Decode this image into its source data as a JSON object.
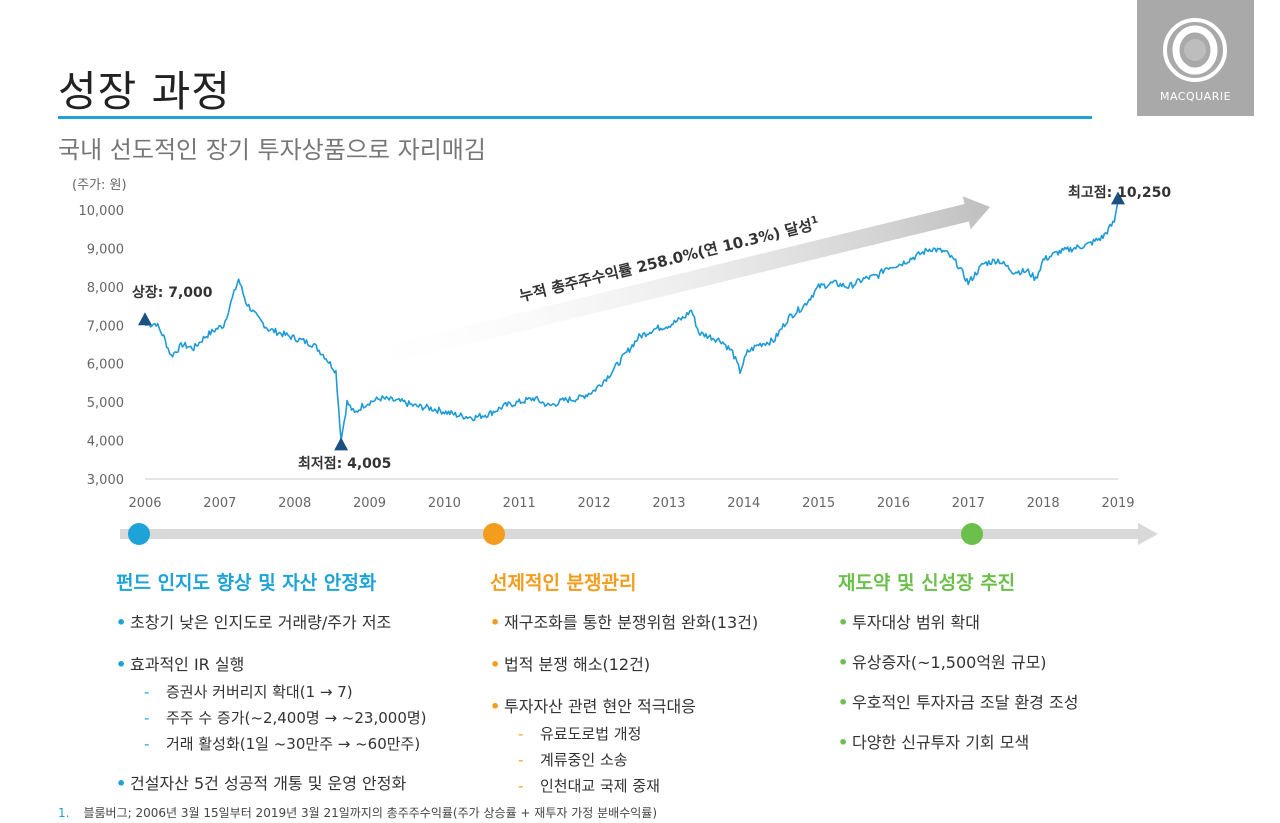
{
  "page": {
    "title": "성장 과정",
    "subtitle": "국내 선도적인 장기 투자상품으로 자리매김",
    "logo_text": "MACQUARIE",
    "accent_color": "#1ea3d9"
  },
  "chart_data": {
    "type": "line",
    "ylabel": "(주가: 원)",
    "ylim": [
      3000,
      10000
    ],
    "yticks": [
      "3,000",
      "4,000",
      "5,000",
      "6,000",
      "7,000",
      "8,000",
      "9,000",
      "10,000"
    ],
    "xlim": [
      2006,
      2019
    ],
    "xticks": [
      "2006",
      "2007",
      "2008",
      "2009",
      "2010",
      "2011",
      "2012",
      "2013",
      "2014",
      "2015",
      "2016",
      "2017",
      "2018",
      "2019"
    ],
    "series": [
      {
        "color": "#1e9bd7",
        "x": [
          2006.0,
          2006.15,
          2006.25,
          2006.35,
          2006.5,
          2006.65,
          2006.8,
          2006.95,
          2007.05,
          2007.15,
          2007.25,
          2007.35,
          2007.5,
          2007.65,
          2007.8,
          2007.95,
          2008.1,
          2008.25,
          2008.4,
          2008.55,
          2008.62,
          2008.7,
          2008.8,
          2008.9,
          2009.0,
          2009.15,
          2009.3,
          2009.45,
          2009.6,
          2009.8,
          2010.0,
          2010.2,
          2010.4,
          2010.6,
          2010.8,
          2011.0,
          2011.2,
          2011.4,
          2011.6,
          2011.8,
          2012.0,
          2012.2,
          2012.4,
          2012.6,
          2012.8,
          2013.0,
          2013.2,
          2013.3,
          2013.4,
          2013.55,
          2013.7,
          2013.85,
          2013.95,
          2014.05,
          2014.2,
          2014.4,
          2014.6,
          2014.8,
          2015.0,
          2015.2,
          2015.4,
          2015.6,
          2015.8,
          2015.9,
          2016.1,
          2016.3,
          2016.5,
          2016.7,
          2016.85,
          2017.0,
          2017.2,
          2017.4,
          2017.6,
          2017.8,
          2017.9,
          2018.0,
          2018.2,
          2018.4,
          2018.6,
          2018.8,
          2018.95,
          2019.0
        ],
        "y": [
          7000,
          7050,
          6700,
          6200,
          6500,
          6400,
          6700,
          6900,
          7000,
          7600,
          8200,
          7600,
          7200,
          6900,
          6800,
          6700,
          6600,
          6500,
          6200,
          5800,
          4005,
          5000,
          4700,
          4900,
          5000,
          5100,
          5050,
          5000,
          4900,
          4850,
          4750,
          4650,
          4600,
          4700,
          4900,
          5000,
          5100,
          4900,
          5050,
          5100,
          5300,
          5700,
          6200,
          6700,
          6900,
          7000,
          7200,
          7400,
          6800,
          6700,
          6600,
          6300,
          5800,
          6300,
          6500,
          6600,
          7200,
          7500,
          8000,
          8100,
          8000,
          8200,
          8300,
          8500,
          8600,
          8800,
          9000,
          8900,
          8600,
          8100,
          8600,
          8700,
          8400,
          8400,
          8200,
          8700,
          8900,
          9000,
          9100,
          9300,
          9700,
          10250
        ]
      }
    ],
    "annotations": {
      "listing": "상장: 7,000",
      "low": "최저점: 4,005",
      "high": "최고점: 10,250",
      "arrow_label": "누적 총주주수익률 258.0%(연 10.3%) 달성",
      "arrow_label_sup": "1"
    }
  },
  "timeline": {
    "colors": [
      "#1ea3d9",
      "#f39c1d",
      "#6dbf4b"
    ],
    "track_color": "#d9d9d9"
  },
  "columns": [
    {
      "heading": "펀드 인지도 향상 및 자산 안정화",
      "color": "#1ea3d9",
      "items": [
        {
          "text": "초창기 낮은 인지도로 거래량/주가 저조",
          "subs": []
        },
        {
          "text": "효과적인 IR 실행",
          "subs": [
            "증권사 커버리지 확대(1 → 7)",
            "주주 수 증가(~2,400명 → ~23,000명)",
            "거래 활성화(1일 ~30만주 → ~60만주)"
          ]
        },
        {
          "text": "건설자산 5건 성공적 개통 및 운영 안정화",
          "subs": []
        }
      ]
    },
    {
      "heading": "선제적인 분쟁관리",
      "color": "#f39c1d",
      "items": [
        {
          "text": "재구조화를 통한 분쟁위험 완화(13건)",
          "subs": []
        },
        {
          "text": "법적 분쟁 해소(12건)",
          "subs": []
        },
        {
          "text": "투자자산 관련 현안 적극대응",
          "subs": [
            "유료도로법 개정",
            "계류중인 소송",
            "인천대교 국제 중재"
          ]
        }
      ]
    },
    {
      "heading": "재도약 및 신성장 추진",
      "color": "#6dbf4b",
      "items": [
        {
          "text": "투자대상 범위 확대",
          "subs": []
        },
        {
          "text": "유상증자(~1,500억원 규모)",
          "subs": []
        },
        {
          "text": "우호적인 투자자금 조달 환경 조성",
          "subs": []
        },
        {
          "text": "다양한 신규투자 기회 모색",
          "subs": []
        }
      ]
    }
  ],
  "footnote": {
    "num": "1.",
    "text": "블룸버그; 2006년 3월 15일부터 2019년 3월 21일까지의 총주주수익률(주가 상승률 + 재투자 가정 분배수익률)"
  }
}
